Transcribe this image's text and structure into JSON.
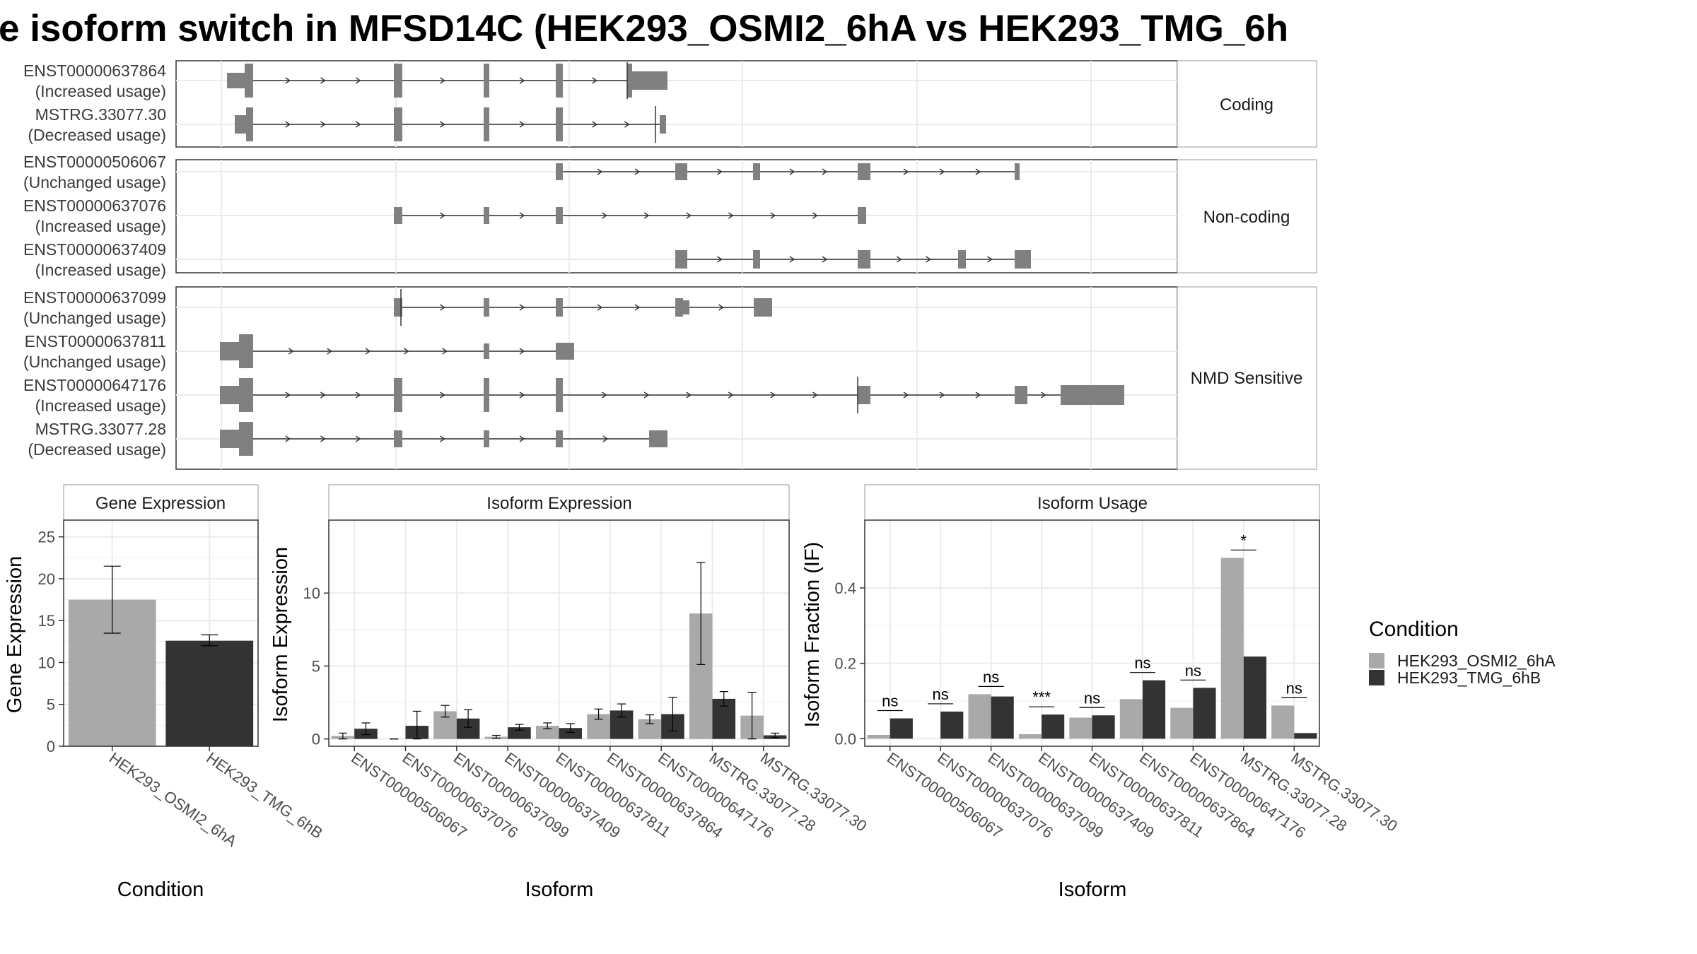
{
  "title": "e isoform switch in MFSD14C (HEK293_OSMI2_6hA vs HEK293_TMG_6h",
  "structure": {
    "groups": [
      {
        "label": "Coding",
        "isoforms": [
          {
            "id": "ENST00000637864",
            "status": "(Increased usage)"
          },
          {
            "id": "MSTRG.33077.30",
            "status": "(Decreased usage)"
          }
        ]
      },
      {
        "label": "Non-coding",
        "isoforms": [
          {
            "id": "ENST00000506067",
            "status": "(Unchanged usage)"
          },
          {
            "id": "ENST00000637076",
            "status": "(Increased usage)"
          },
          {
            "id": "ENST00000637409",
            "status": "(Increased usage)"
          }
        ]
      },
      {
        "label": "NMD Sensitive",
        "isoforms": [
          {
            "id": "ENST00000637099",
            "status": "(Unchanged usage)"
          },
          {
            "id": "ENST00000637811",
            "status": "(Unchanged usage)"
          },
          {
            "id": "ENST00000647176",
            "status": "(Increased usage)"
          },
          {
            "id": "MSTRG.33077.28",
            "status": "(Decreased usage)"
          }
        ]
      }
    ],
    "exon_color": "#808080"
  },
  "chart_data": [
    {
      "type": "bar",
      "title": "Gene Expression",
      "xlabel": "Condition",
      "ylabel": "Gene Expression",
      "ylim": [
        0,
        27
      ],
      "yticks": [
        0,
        5,
        10,
        15,
        20,
        25
      ],
      "categories": [
        "HEK293_OSMI2_6hA",
        "HEK293_TMG_6hB"
      ],
      "values": [
        17.5,
        12.6
      ],
      "error_low": [
        13.5,
        12.0
      ],
      "error_high": [
        21.5,
        13.3
      ]
    },
    {
      "type": "bar",
      "title": "Isoform Expression",
      "xlabel": "Isoform",
      "ylabel": "Isoform Expression",
      "ylim": [
        -0.5,
        15
      ],
      "yticks": [
        0,
        5,
        10
      ],
      "categories": [
        "ENST00000506067",
        "ENST00000637076",
        "ENST00000637099",
        "ENST00000637409",
        "ENST00000637811",
        "ENST00000637864",
        "ENST00000647176",
        "MSTRG.33077.28",
        "MSTRG.33077.30"
      ],
      "series": [
        {
          "name": "HEK293_OSMI2_6hA",
          "values": [
            0.2,
            0.0,
            1.9,
            0.15,
            0.9,
            1.7,
            1.35,
            8.6,
            1.6
          ],
          "err_low": [
            0.0,
            0.0,
            1.5,
            0.05,
            0.7,
            1.35,
            1.05,
            5.1,
            0.0
          ],
          "err_high": [
            0.4,
            0.0,
            2.3,
            0.25,
            1.1,
            2.05,
            1.65,
            12.1,
            3.2
          ]
        },
        {
          "name": "HEK293_TMG_6hB",
          "values": [
            0.7,
            0.9,
            1.4,
            0.8,
            0.75,
            1.95,
            1.7,
            2.75,
            0.25
          ],
          "err_low": [
            0.3,
            0.0,
            0.8,
            0.6,
            0.45,
            1.5,
            0.55,
            2.25,
            0.1
          ],
          "err_high": [
            1.1,
            1.9,
            2.0,
            1.0,
            1.05,
            2.4,
            2.85,
            3.25,
            0.4
          ]
        }
      ]
    },
    {
      "type": "bar",
      "title": "Isoform Usage",
      "xlabel": "Isoform",
      "ylabel": "Isoform Fraction (IF)",
      "ylim": [
        -0.02,
        0.58
      ],
      "yticks": [
        0.0,
        0.2,
        0.4
      ],
      "categories": [
        "ENST00000506067",
        "ENST00000637076",
        "ENST00000637099",
        "ENST00000637409",
        "ENST00000637811",
        "ENST00000637864",
        "ENST00000647176",
        "MSTRG.33077.28",
        "MSTRG.33077.30"
      ],
      "series": [
        {
          "name": "HEK293_OSMI2_6hA",
          "values": [
            0.01,
            0.0,
            0.118,
            0.012,
            0.056,
            0.105,
            0.082,
            0.48,
            0.088
          ]
        },
        {
          "name": "HEK293_TMG_6hB",
          "values": [
            0.054,
            0.072,
            0.112,
            0.064,
            0.062,
            0.155,
            0.135,
            0.218,
            0.015
          ]
        }
      ],
      "significance": [
        "ns",
        "ns",
        "ns",
        "***",
        "ns",
        "ns",
        "ns",
        "*",
        "ns"
      ]
    }
  ],
  "legend": {
    "title": "Condition",
    "items": [
      {
        "label": "HEK293_OSMI2_6hA",
        "color": "#a9a9a9"
      },
      {
        "label": "HEK293_TMG_6hB",
        "color": "#333333"
      }
    ]
  }
}
